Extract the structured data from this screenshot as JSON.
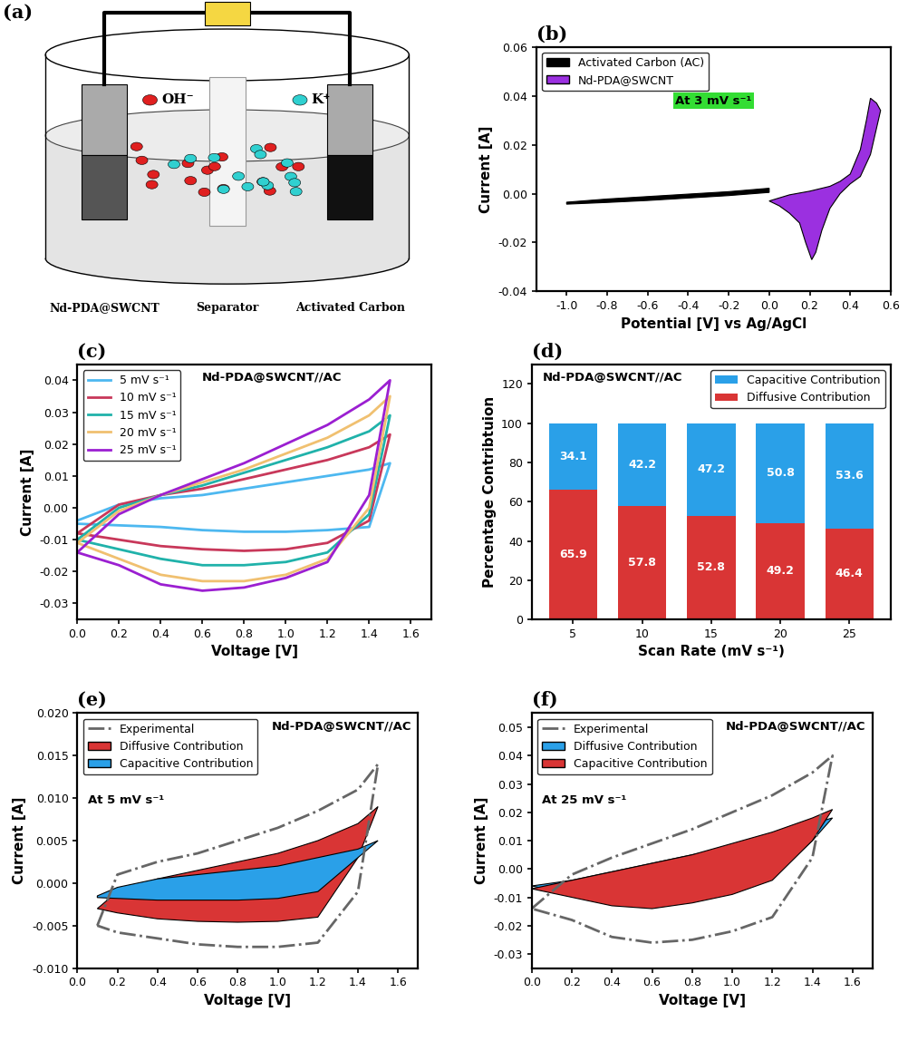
{
  "diagram": {
    "panel_label": "(a)",
    "ion_labels": [
      "OH⁻",
      "K⁺"
    ],
    "component_labels": [
      "Nd-PDA@SWCNT",
      "Separator",
      "Activated Carbon"
    ]
  },
  "chart_data": [
    {
      "type": "line",
      "panel_label": "(b)",
      "annotation": "At 3 mV s⁻¹",
      "xlabel": "Potential [V] vs Ag/AgCl",
      "ylabel": "Current [A]",
      "xlim": [
        -1.15,
        0.6
      ],
      "ylim": [
        -0.04,
        0.06
      ],
      "xticks": [
        -1.0,
        -0.8,
        -0.6,
        -0.4,
        -0.2,
        0.0,
        0.2,
        0.4,
        0.6
      ],
      "yticks": [
        {
          "value": -0.04,
          "label": "-0.04"
        },
        {
          "value": -0.02,
          "label": "-0.02"
        },
        {
          "value": 0.0,
          "label": "0.00"
        },
        {
          "value": 0.02,
          "label": "0.02"
        },
        {
          "value": 0.04,
          "label": "0.04"
        },
        {
          "value": 0.06,
          "label": "0.06"
        }
      ],
      "legend": "upper left",
      "series": [
        {
          "name": "Activated Carbon (AC)",
          "type": "area",
          "color": "#000000",
          "x": [
            -1.0,
            -0.8,
            -0.6,
            -0.4,
            -0.2,
            0.0,
            0.0,
            -0.2,
            -0.4,
            -0.6,
            -0.8,
            -1.0
          ],
          "values": [
            -0.0035,
            -0.0022,
            -0.0012,
            -0.0002,
            0.0008,
            0.0022,
            0.0005,
            -0.0008,
            -0.0018,
            -0.0028,
            -0.0036,
            -0.0043
          ]
        },
        {
          "name": "Nd-PDA@SWCNT",
          "type": "area",
          "color": "#9b30e0",
          "x": [
            0.0,
            0.1,
            0.2,
            0.3,
            0.35,
            0.4,
            0.45,
            0.48,
            0.5,
            0.53,
            0.55,
            0.5,
            0.45,
            0.4,
            0.35,
            0.3,
            0.26,
            0.23,
            0.21,
            0.18,
            0.15,
            0.1,
            0.05,
            0.0
          ],
          "values": [
            -0.003,
            -0.0005,
            0.001,
            0.003,
            0.005,
            0.008,
            0.018,
            0.03,
            0.039,
            0.037,
            0.034,
            0.016,
            0.007,
            0.004,
            0.0,
            -0.006,
            -0.015,
            -0.024,
            -0.027,
            -0.02,
            -0.012,
            -0.008,
            -0.005,
            -0.003
          ]
        }
      ]
    },
    {
      "type": "line",
      "panel_label": "(c)",
      "title": "Nd-PDA@SWCNT//AC",
      "xlabel": "Voltage [V]",
      "ylabel": "Current [A]",
      "xlim": [
        0.0,
        1.7
      ],
      "ylim": [
        -0.035,
        0.045
      ],
      "xticks": [
        0.0,
        0.2,
        0.4,
        0.6,
        0.8,
        1.0,
        1.2,
        1.4,
        1.6
      ],
      "yticks": [
        -0.03,
        -0.02,
        -0.01,
        {
          "value": 0.0,
          "label": "0.00"
        },
        0.01,
        0.02,
        0.03,
        0.04
      ],
      "legend": "upper left",
      "series": [
        {
          "name": "5 mV s⁻¹",
          "type": "line",
          "line_style": "solid",
          "color": "#4db8f0",
          "x": [
            0.0,
            0.2,
            0.4,
            0.6,
            0.8,
            1.0,
            1.2,
            1.4,
            1.5,
            1.4,
            1.2,
            1.0,
            0.8,
            0.6,
            0.4,
            0.2,
            0.0
          ],
          "values": [
            -0.004,
            0.001,
            0.003,
            0.004,
            0.006,
            0.008,
            0.01,
            0.012,
            0.014,
            -0.006,
            -0.007,
            -0.0075,
            -0.0075,
            -0.007,
            -0.006,
            -0.0055,
            -0.005
          ]
        },
        {
          "name": "10 mV s⁻¹",
          "type": "line",
          "line_style": "solid",
          "color": "#c8385a",
          "x": [
            0.0,
            0.2,
            0.4,
            0.6,
            0.8,
            1.0,
            1.2,
            1.4,
            1.5,
            1.4,
            1.2,
            1.0,
            0.8,
            0.6,
            0.4,
            0.2,
            0.0
          ],
          "values": [
            -0.008,
            0.001,
            0.004,
            0.006,
            0.009,
            0.012,
            0.015,
            0.019,
            0.023,
            -0.004,
            -0.011,
            -0.013,
            -0.0135,
            -0.013,
            -0.012,
            -0.01,
            -0.008
          ]
        },
        {
          "name": "15 mV s⁻¹",
          "type": "line",
          "line_style": "solid",
          "color": "#20b2aa",
          "x": [
            0.0,
            0.2,
            0.4,
            0.6,
            0.8,
            1.0,
            1.2,
            1.4,
            1.5,
            1.4,
            1.2,
            1.0,
            0.8,
            0.6,
            0.4,
            0.2,
            0.0
          ],
          "values": [
            -0.01,
            0.0,
            0.004,
            0.007,
            0.011,
            0.015,
            0.019,
            0.024,
            0.029,
            -0.002,
            -0.014,
            -0.017,
            -0.018,
            -0.018,
            -0.016,
            -0.013,
            -0.01
          ]
        },
        {
          "name": "20 mV s⁻¹",
          "type": "line",
          "line_style": "solid",
          "color": "#f0c070",
          "x": [
            0.0,
            0.2,
            0.4,
            0.6,
            0.8,
            1.0,
            1.2,
            1.4,
            1.5,
            1.4,
            1.2,
            1.0,
            0.8,
            0.6,
            0.4,
            0.2,
            0.0
          ],
          "values": [
            -0.011,
            -0.001,
            0.004,
            0.008,
            0.012,
            0.017,
            0.022,
            0.029,
            0.035,
            0.0,
            -0.016,
            -0.021,
            -0.023,
            -0.023,
            -0.021,
            -0.016,
            -0.011
          ]
        },
        {
          "name": "25 mV s⁻¹",
          "type": "line",
          "line_style": "solid",
          "color": "#9b1fd1",
          "x": [
            0.0,
            0.2,
            0.4,
            0.6,
            0.8,
            1.0,
            1.2,
            1.4,
            1.5,
            1.4,
            1.2,
            1.0,
            0.8,
            0.6,
            0.4,
            0.2,
            0.0
          ],
          "values": [
            -0.014,
            -0.002,
            0.004,
            0.009,
            0.014,
            0.02,
            0.026,
            0.034,
            0.04,
            0.004,
            -0.017,
            -0.022,
            -0.025,
            -0.026,
            -0.024,
            -0.018,
            -0.014
          ]
        }
      ]
    },
    {
      "type": "bar",
      "panel_label": "(d)",
      "title": "Nd-PDA@SWCNT//AC",
      "stacked": true,
      "data_labels": true,
      "xlabel": "Scan Rate (mV s⁻¹)",
      "ylabel": "Percentage Contribtuion",
      "categories": [
        "5",
        "10",
        "15",
        "20",
        "25"
      ],
      "ylim": [
        0,
        130
      ],
      "yticks": [
        0,
        20,
        40,
        60,
        80,
        100,
        120
      ],
      "legend": "upper right",
      "series": [
        {
          "name": "Diffusive Contribution",
          "color": "#d93535",
          "values": [
            65.9,
            57.8,
            52.8,
            49.2,
            46.4
          ]
        },
        {
          "name": "Capacitive Contribution",
          "color": "#2aa0e8",
          "values": [
            34.1,
            42.2,
            47.2,
            50.8,
            53.6
          ]
        }
      ]
    },
    {
      "type": "line",
      "panel_label": "(e)",
      "title": "Nd-PDA@SWCNT//AC",
      "annotation": "At 5 mV s⁻¹",
      "xlabel": "Voltage [V]",
      "ylabel": "Current [A]",
      "xlim": [
        0.0,
        1.7
      ],
      "ylim": [
        -0.01,
        0.02
      ],
      "xticks": [
        0.0,
        0.2,
        0.4,
        0.6,
        0.8,
        1.0,
        1.2,
        1.4,
        1.6
      ],
      "yticks": [
        {
          "value": -0.01,
          "label": "-0.010"
        },
        {
          "value": -0.005,
          "label": "-0.005"
        },
        {
          "value": 0.0,
          "label": "0.000"
        },
        {
          "value": 0.005,
          "label": "0.005"
        },
        {
          "value": 0.01,
          "label": "0.010"
        },
        {
          "value": 0.015,
          "label": "0.015"
        },
        {
          "value": 0.02,
          "label": "0.020"
        }
      ],
      "legend": "upper left",
      "series": [
        {
          "name": "Experimental",
          "type": "line",
          "line_style": "dashdot",
          "color": "#666666",
          "x": [
            0.1,
            0.2,
            0.4,
            0.6,
            0.8,
            1.0,
            1.2,
            1.4,
            1.5,
            1.4,
            1.2,
            1.0,
            0.8,
            0.6,
            0.4,
            0.2,
            0.1
          ],
          "values": [
            -0.005,
            0.001,
            0.0025,
            0.0035,
            0.005,
            0.0065,
            0.0085,
            0.011,
            0.014,
            -0.001,
            -0.007,
            -0.0075,
            -0.0075,
            -0.0072,
            -0.0065,
            -0.0058,
            -0.005
          ]
        },
        {
          "name": "Diffusive Contribution",
          "type": "area",
          "color": "#d93535",
          "x": [
            0.1,
            0.2,
            0.4,
            0.6,
            0.8,
            1.0,
            1.2,
            1.4,
            1.5,
            1.4,
            1.2,
            1.0,
            0.8,
            0.6,
            0.4,
            0.2,
            0.1
          ],
          "values": [
            -0.003,
            -0.001,
            0.0005,
            0.0015,
            0.0025,
            0.0035,
            0.005,
            0.007,
            0.009,
            0.003,
            -0.004,
            -0.0045,
            -0.0046,
            -0.0045,
            -0.0042,
            -0.0035,
            -0.003
          ]
        },
        {
          "name": "Capacitive Contribution",
          "type": "area",
          "color": "#2aa0e8",
          "x": [
            0.1,
            0.2,
            0.4,
            0.6,
            0.8,
            1.0,
            1.2,
            1.4,
            1.5,
            1.4,
            1.2,
            1.0,
            0.8,
            0.6,
            0.4,
            0.2,
            0.1
          ],
          "values": [
            -0.0015,
            -0.0005,
            0.0005,
            0.001,
            0.0015,
            0.002,
            0.003,
            0.004,
            0.005,
            0.003,
            -0.001,
            -0.0018,
            -0.002,
            -0.002,
            -0.002,
            -0.0018,
            -0.0017
          ]
        }
      ]
    },
    {
      "type": "line",
      "panel_label": "(f)",
      "title": "Nd-PDA@SWCNT//AC",
      "annotation": "At 25 mV s⁻¹",
      "xlabel": "Voltage [V]",
      "ylabel": "Current [A]",
      "xlim": [
        0.0,
        1.7
      ],
      "ylim": [
        -0.035,
        0.055
      ],
      "xticks": [
        0.0,
        0.2,
        0.4,
        0.6,
        0.8,
        1.0,
        1.2,
        1.4,
        1.6
      ],
      "yticks": [
        -0.03,
        -0.02,
        -0.01,
        {
          "value": 0.0,
          "label": "0.00"
        },
        0.01,
        0.02,
        0.03,
        0.04,
        0.05
      ],
      "legend": "upper left",
      "series": [
        {
          "name": "Experimental",
          "type": "line",
          "line_style": "dashdot",
          "color": "#666666",
          "x": [
            0.0,
            0.2,
            0.4,
            0.6,
            0.8,
            1.0,
            1.2,
            1.4,
            1.5,
            1.4,
            1.2,
            1.0,
            0.8,
            0.6,
            0.4,
            0.2,
            0.0
          ],
          "values": [
            -0.014,
            -0.002,
            0.004,
            0.009,
            0.014,
            0.02,
            0.026,
            0.034,
            0.04,
            0.004,
            -0.017,
            -0.022,
            -0.025,
            -0.026,
            -0.024,
            -0.018,
            -0.014
          ]
        },
        {
          "name": "Diffusive Contribution",
          "type": "area",
          "color": "#2aa0e8",
          "x": [
            0.0,
            0.2,
            0.4,
            0.6,
            0.8,
            1.0,
            1.2,
            1.4,
            1.5,
            1.4,
            1.2,
            1.0,
            0.8,
            0.6,
            0.4,
            0.2,
            0.0
          ],
          "values": [
            -0.006,
            -0.004,
            -0.001,
            0.002,
            0.005,
            0.008,
            0.012,
            0.016,
            0.018,
            0.01,
            -0.003,
            -0.008,
            -0.011,
            -0.013,
            -0.012,
            -0.009,
            -0.006
          ]
        },
        {
          "name": "Capacitive Contribution",
          "type": "area",
          "color": "#d93535",
          "x": [
            0.0,
            0.2,
            0.4,
            0.6,
            0.8,
            1.0,
            1.2,
            1.4,
            1.5,
            1.4,
            1.2,
            1.0,
            0.8,
            0.6,
            0.4,
            0.2,
            0.0
          ],
          "values": [
            -0.007,
            -0.004,
            -0.001,
            0.002,
            0.005,
            0.009,
            0.013,
            0.018,
            0.021,
            0.01,
            -0.004,
            -0.009,
            -0.012,
            -0.014,
            -0.013,
            -0.01,
            -0.007
          ]
        }
      ]
    }
  ]
}
